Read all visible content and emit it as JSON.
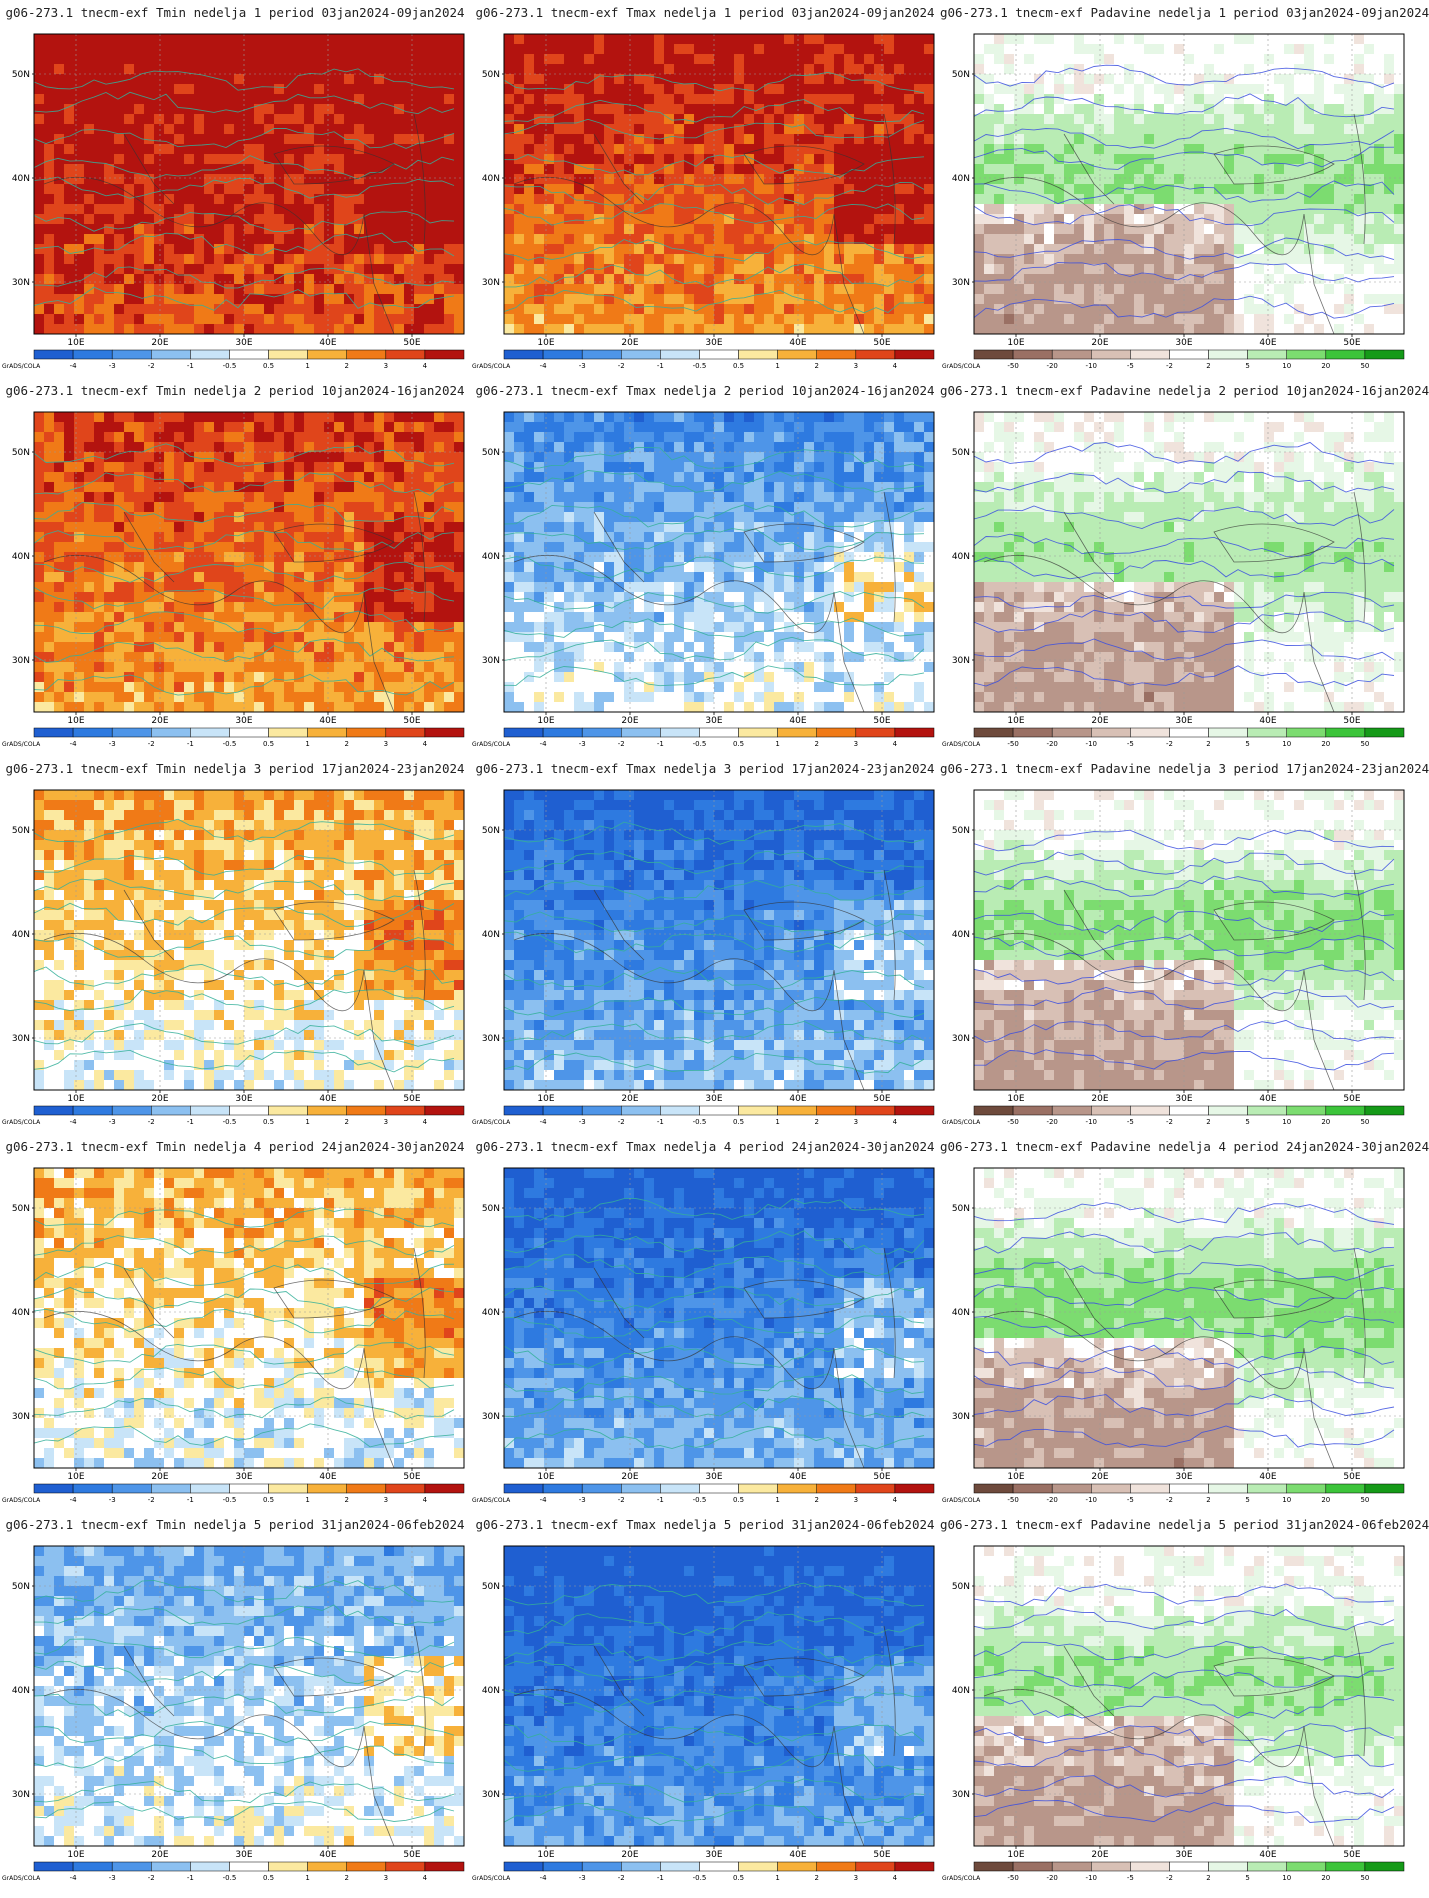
{
  "page": {
    "title": ""
  },
  "axes": {
    "lat_labels": [
      "50N",
      "40N",
      "30N"
    ],
    "lon_labels": [
      "10E",
      "20E",
      "30E",
      "40E",
      "50E"
    ],
    "credit": "GrADS/COLA"
  },
  "colorbars": {
    "temperature": {
      "ticks": [
        "-4",
        "-3",
        "-2",
        "-1",
        "-0.5",
        "0.5",
        "1",
        "2",
        "3",
        "4"
      ],
      "colors": [
        "#1f5fd1",
        "#2e7ae0",
        "#4e95e8",
        "#8cc0f0",
        "#c8e4f8",
        "#ffffff",
        "#fbe9a0",
        "#f7b13a",
        "#f07a17",
        "#e0451b",
        "#b3130f"
      ]
    },
    "precipitation": {
      "ticks": [
        "-50",
        "-20",
        "-10",
        "-5",
        "-2",
        "2",
        "5",
        "10",
        "20",
        "50"
      ],
      "colors": [
        "#6e4a3c",
        "#9a7064",
        "#b8968a",
        "#d8c0b5",
        "#f0e3dc",
        "#ffffff",
        "#e6f7e6",
        "#b9ecb4",
        "#7cdc70",
        "#3cc43a",
        "#159a18"
      ]
    }
  },
  "panels": [
    {
      "title": "g06-273.1 tnecm-exf Tmin nedelja 1 period 03jan2024-09jan2024",
      "variable": "Tmin",
      "week": 1,
      "anomaly_level": 0.85
    },
    {
      "title": "g06-273.1 tnecm-exf Tmax nedelja 1 period 03jan2024-09jan2024",
      "variable": "Tmax",
      "week": 1,
      "anomaly_level": 0.65
    },
    {
      "title": "g06-273.1 tnecm-exf Padavine nedelja 1 period 03jan2024-09jan2024",
      "variable": "Padavine",
      "week": 1,
      "anomaly_level": 0.2
    },
    {
      "title": "g06-273.1 tnecm-exf Tmin nedelja 2 period 10jan2024-16jan2024",
      "variable": "Tmin",
      "week": 2,
      "anomaly_level": 0.55
    },
    {
      "title": "g06-273.1 tnecm-exf Tmax nedelja 2 period 10jan2024-16jan2024",
      "variable": "Tmax",
      "week": 2,
      "anomaly_level": -0.3
    },
    {
      "title": "g06-273.1 tnecm-exf Padavine nedelja 2 period 10jan2024-16jan2024",
      "variable": "Padavine",
      "week": 2,
      "anomaly_level": 0.15
    },
    {
      "title": "g06-273.1 tnecm-exf Tmin nedelja 3 period 17jan2024-23jan2024",
      "variable": "Tmin",
      "week": 3,
      "anomaly_level": 0.15
    },
    {
      "title": "g06-273.1 tnecm-exf Tmax nedelja 3 period 17jan2024-23jan2024",
      "variable": "Tmax",
      "week": 3,
      "anomaly_level": -0.55
    },
    {
      "title": "g06-273.1 tnecm-exf Padavine nedelja 3 period 17jan2024-23jan2024",
      "variable": "Padavine",
      "week": 3,
      "anomaly_level": 0.25
    },
    {
      "title": "g06-273.1 tnecm-exf Tmin nedelja 4 period 24jan2024-30jan2024",
      "variable": "Tmin",
      "week": 4,
      "anomaly_level": 0.1
    },
    {
      "title": "g06-273.1 tnecm-exf Tmax nedelja 4 period 24jan2024-30jan2024",
      "variable": "Tmax",
      "week": 4,
      "anomaly_level": -0.6
    },
    {
      "title": "g06-273.1 tnecm-exf Padavine nedelja 4 period 24jan2024-30jan2024",
      "variable": "Padavine",
      "week": 4,
      "anomaly_level": 0.3
    },
    {
      "title": "g06-273.1 tnecm-exf Tmin nedelja 5 period 31jan2024-06feb2024",
      "variable": "Tmin",
      "week": 5,
      "anomaly_level": -0.2
    },
    {
      "title": "g06-273.1 tnecm-exf Tmax nedelja 5 period 31jan2024-06feb2024",
      "variable": "Tmax",
      "week": 5,
      "anomaly_level": -0.7
    },
    {
      "title": "g06-273.1 tnecm-exf Padavine nedelja 5 period 31jan2024-06feb2024",
      "variable": "Padavine",
      "week": 5,
      "anomaly_level": 0.2
    }
  ]
}
